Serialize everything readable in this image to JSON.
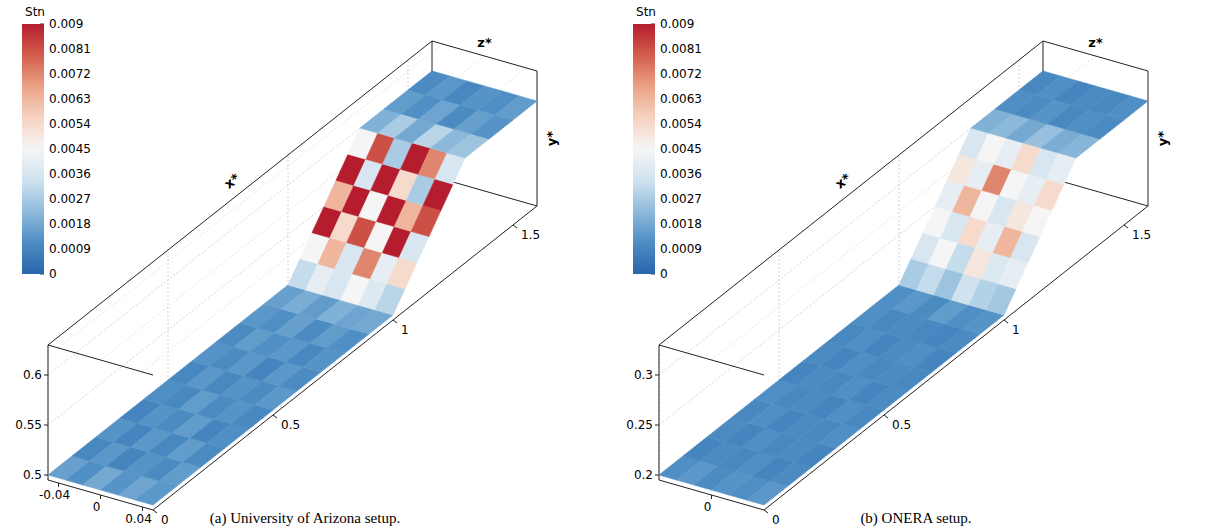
{
  "chart_data": [
    {
      "type": "surface",
      "title": "(a) University of Arizona setup.",
      "grid": true,
      "xlabel": "x*",
      "ylabel": "y*",
      "zlabel": "z*",
      "xlim": [
        0,
        1.6
      ],
      "ylim": [
        0.495,
        0.63
      ],
      "zlim": [
        -0.05,
        0.05
      ],
      "xticks": [
        0,
        0.5,
        1,
        1.5
      ],
      "yticks": [
        0.5,
        0.55,
        0.6
      ],
      "zticks": [
        -0.04,
        0,
        0.04
      ],
      "colorbar": {
        "title": "Stn",
        "range": [
          0,
          0.009
        ],
        "ticks": [
          0,
          0.0009,
          0.0018,
          0.0027,
          0.0036,
          0.0045,
          0.0054,
          0.0063,
          0.0072,
          0.0081,
          0.009
        ],
        "colors": [
          "#2b65ac",
          "#4c8cc3",
          "#8fbbdb",
          "#cfe2ef",
          "#f5f5f5",
          "#f6d3c1",
          "#eba285",
          "#d35d4c",
          "#b51d2e"
        ]
      },
      "surface_height": {
        "x": [
          0,
          1.0,
          1.3,
          1.6
        ],
        "y": [
          0.5,
          0.5,
          0.6,
          0.6
        ]
      },
      "stn": {
        "x_edges": [
          0,
          0.1,
          0.2,
          0.3,
          0.4,
          0.5,
          0.6,
          0.7,
          0.8,
          0.9,
          1.0,
          1.05,
          1.1,
          1.15,
          1.2,
          1.25,
          1.3,
          1.4,
          1.5,
          1.6
        ],
        "z_edges": [
          -0.05,
          -0.033,
          -0.017,
          0,
          0.017,
          0.033,
          0.05
        ],
        "values": [
          [
            0.0016,
            0.0012,
            0.0018,
            0.0013,
            0.0017,
            0.0014
          ],
          [
            0.001,
            0.0014,
            0.0009,
            0.0013,
            0.0011,
            0.0015
          ],
          [
            0.0013,
            0.0009,
            0.0014,
            0.001,
            0.0015,
            0.0011
          ],
          [
            0.0009,
            0.0013,
            0.0011,
            0.0015,
            0.0009,
            0.0012
          ],
          [
            0.0012,
            0.001,
            0.0015,
            0.0011,
            0.0013,
            0.001
          ],
          [
            0.001,
            0.0014,
            0.001,
            0.0013,
            0.0011,
            0.0014
          ],
          [
            0.0013,
            0.0011,
            0.0014,
            0.0009,
            0.0014,
            0.0011
          ],
          [
            0.0011,
            0.0015,
            0.0012,
            0.0014,
            0.001,
            0.0013
          ],
          [
            0.0014,
            0.0012,
            0.0016,
            0.0011,
            0.0015,
            0.0012
          ],
          [
            0.0016,
            0.0019,
            0.0015,
            0.002,
            0.0017,
            0.0018
          ],
          [
            0.0032,
            0.0041,
            0.0036,
            0.0045,
            0.0038,
            0.003
          ],
          [
            0.0045,
            0.0063,
            0.0036,
            0.0072,
            0.0041,
            0.0054
          ],
          [
            0.009,
            0.0054,
            0.0081,
            0.0045,
            0.009,
            0.0036
          ],
          [
            0.0063,
            0.009,
            0.0045,
            0.009,
            0.0063,
            0.0081
          ],
          [
            0.009,
            0.0036,
            0.009,
            0.0054,
            0.0027,
            0.009
          ],
          [
            0.0045,
            0.0081,
            0.0027,
            0.009,
            0.0072,
            0.0036
          ],
          [
            0.002,
            0.0027,
            0.0018,
            0.003,
            0.0022,
            0.0025
          ],
          [
            0.0015,
            0.0012,
            0.0017,
            0.0011,
            0.0016,
            0.0013
          ],
          [
            0.0011,
            0.0014,
            0.001,
            0.0013,
            0.0012,
            0.0015
          ]
        ]
      }
    },
    {
      "type": "surface",
      "title": "(b) ONERA setup.",
      "grid": true,
      "xlabel": "x*",
      "ylabel": "y*",
      "zlabel": "z*",
      "xlim": [
        0,
        1.6
      ],
      "ylim": [
        0.195,
        0.33
      ],
      "zlim": [
        -0.03,
        0.03
      ],
      "xticks": [
        0,
        0.5,
        1,
        1.5
      ],
      "yticks": [
        0.2,
        0.25,
        0.3
      ],
      "zticks": [
        0
      ],
      "colorbar": {
        "title": "Stn",
        "range": [
          0,
          0.009
        ],
        "ticks": [
          0,
          0.0009,
          0.0018,
          0.0027,
          0.0036,
          0.0045,
          0.0054,
          0.0063,
          0.0072,
          0.0081,
          0.009
        ],
        "colors": [
          "#2b65ac",
          "#4c8cc3",
          "#8fbbdb",
          "#cfe2ef",
          "#f5f5f5",
          "#f6d3c1",
          "#eba285",
          "#d35d4c",
          "#b51d2e"
        ]
      },
      "surface_height": {
        "x": [
          0,
          1.0,
          1.3,
          1.6
        ],
        "y": [
          0.2,
          0.2,
          0.3,
          0.3
        ]
      },
      "stn": {
        "x_edges": [
          0,
          0.1,
          0.2,
          0.3,
          0.4,
          0.5,
          0.6,
          0.7,
          0.8,
          0.9,
          1.0,
          1.05,
          1.1,
          1.15,
          1.2,
          1.25,
          1.3,
          1.4,
          1.5,
          1.6
        ],
        "z_edges": [
          -0.03,
          -0.02,
          -0.01,
          0,
          0.01,
          0.02,
          0.03
        ],
        "values": [
          [
            0.0012,
            0.0014,
            0.0011,
            0.0013,
            0.0012,
            0.0014
          ],
          [
            0.0009,
            0.0011,
            0.001,
            0.0012,
            0.0009,
            0.0011
          ],
          [
            0.0011,
            0.0009,
            0.0012,
            0.001,
            0.0011,
            0.0009
          ],
          [
            0.001,
            0.0012,
            0.0009,
            0.0011,
            0.001,
            0.0012
          ],
          [
            0.0012,
            0.001,
            0.0011,
            0.0009,
            0.0012,
            0.001
          ],
          [
            0.0009,
            0.0011,
            0.001,
            0.0012,
            0.0009,
            0.0011
          ],
          [
            0.0011,
            0.0009,
            0.0012,
            0.001,
            0.0011,
            0.001
          ],
          [
            0.001,
            0.0012,
            0.0009,
            0.0011,
            0.0012,
            0.0009
          ],
          [
            0.0012,
            0.001,
            0.0011,
            0.001,
            0.0009,
            0.0011
          ],
          [
            0.0012,
            0.0014,
            0.0011,
            0.0015,
            0.0012,
            0.0013
          ],
          [
            0.0027,
            0.0032,
            0.0025,
            0.0034,
            0.0029,
            0.0026
          ],
          [
            0.0036,
            0.0045,
            0.0032,
            0.005,
            0.0038,
            0.0041
          ],
          [
            0.0045,
            0.0036,
            0.0054,
            0.0041,
            0.0063,
            0.0036
          ],
          [
            0.0041,
            0.0063,
            0.0045,
            0.0036,
            0.005,
            0.0045
          ],
          [
            0.005,
            0.0041,
            0.0072,
            0.0045,
            0.0041,
            0.0054
          ],
          [
            0.0036,
            0.0045,
            0.0041,
            0.0054,
            0.0036,
            0.0041
          ],
          [
            0.002,
            0.0022,
            0.0018,
            0.0024,
            0.0019,
            0.0021
          ],
          [
            0.0012,
            0.0011,
            0.0013,
            0.001,
            0.0012,
            0.0011
          ],
          [
            0.001,
            0.0012,
            0.0009,
            0.0011,
            0.001,
            0.0012
          ]
        ]
      }
    }
  ]
}
